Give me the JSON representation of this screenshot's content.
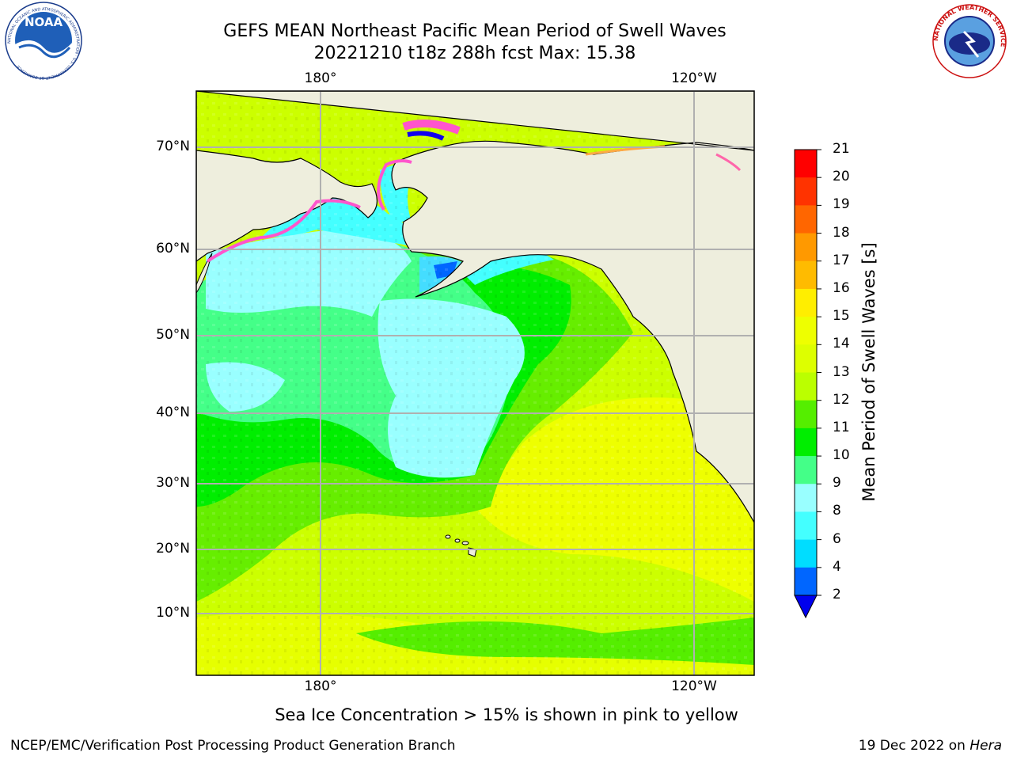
{
  "header": {
    "title_line1": "GEFS MEAN Northeast Pacific Mean Period of Swell Waves",
    "title_line2": "20221210 t18z 288h fcst   Max: 15.38"
  },
  "logos": {
    "left": "NOAA",
    "left_ring_text": "NATIONAL OCEANIC AND ATMOSPHERIC ADMINISTRATION · U.S. DEPARTMENT OF COMMERCE",
    "right_ring_text": "NATIONAL WEATHER SERVICE"
  },
  "map": {
    "lon_labels_top": [
      "180°",
      "120°W"
    ],
    "lon_labels_bottom": [
      "180°",
      "120°W"
    ],
    "lat_labels": [
      "70°N",
      "60°N",
      "50°N",
      "40°N",
      "30°N",
      "20°N",
      "10°N"
    ],
    "land_color": "#eeeedd",
    "gridline_color": "#b0b0b0"
  },
  "colorbar": {
    "title": "Mean Period of Swell Waves [s]",
    "ticks": [
      "2",
      "4",
      "6",
      "8",
      "9",
      "10",
      "11",
      "12",
      "13",
      "14",
      "15",
      "16",
      "17",
      "18",
      "19",
      "20",
      "21"
    ],
    "colors": [
      "#0066ff",
      "#00ddff",
      "#44ffff",
      "#99ffff",
      "#44ff88",
      "#00ee00",
      "#55ee00",
      "#bbff00",
      "#ddff00",
      "#eeff00",
      "#ffee00",
      "#ffbb00",
      "#ff9900",
      "#ff6600",
      "#ff3300",
      "#ff0000"
    ],
    "extend_below_color": "#0000ee"
  },
  "footer": {
    "note": "Sea Ice Concentration > 15% is shown in pink to yellow",
    "left": "NCEP/EMC/Verification Post Processing Product Generation Branch",
    "right_prefix": "19 Dec 2022 on ",
    "right_host": "Hera"
  }
}
